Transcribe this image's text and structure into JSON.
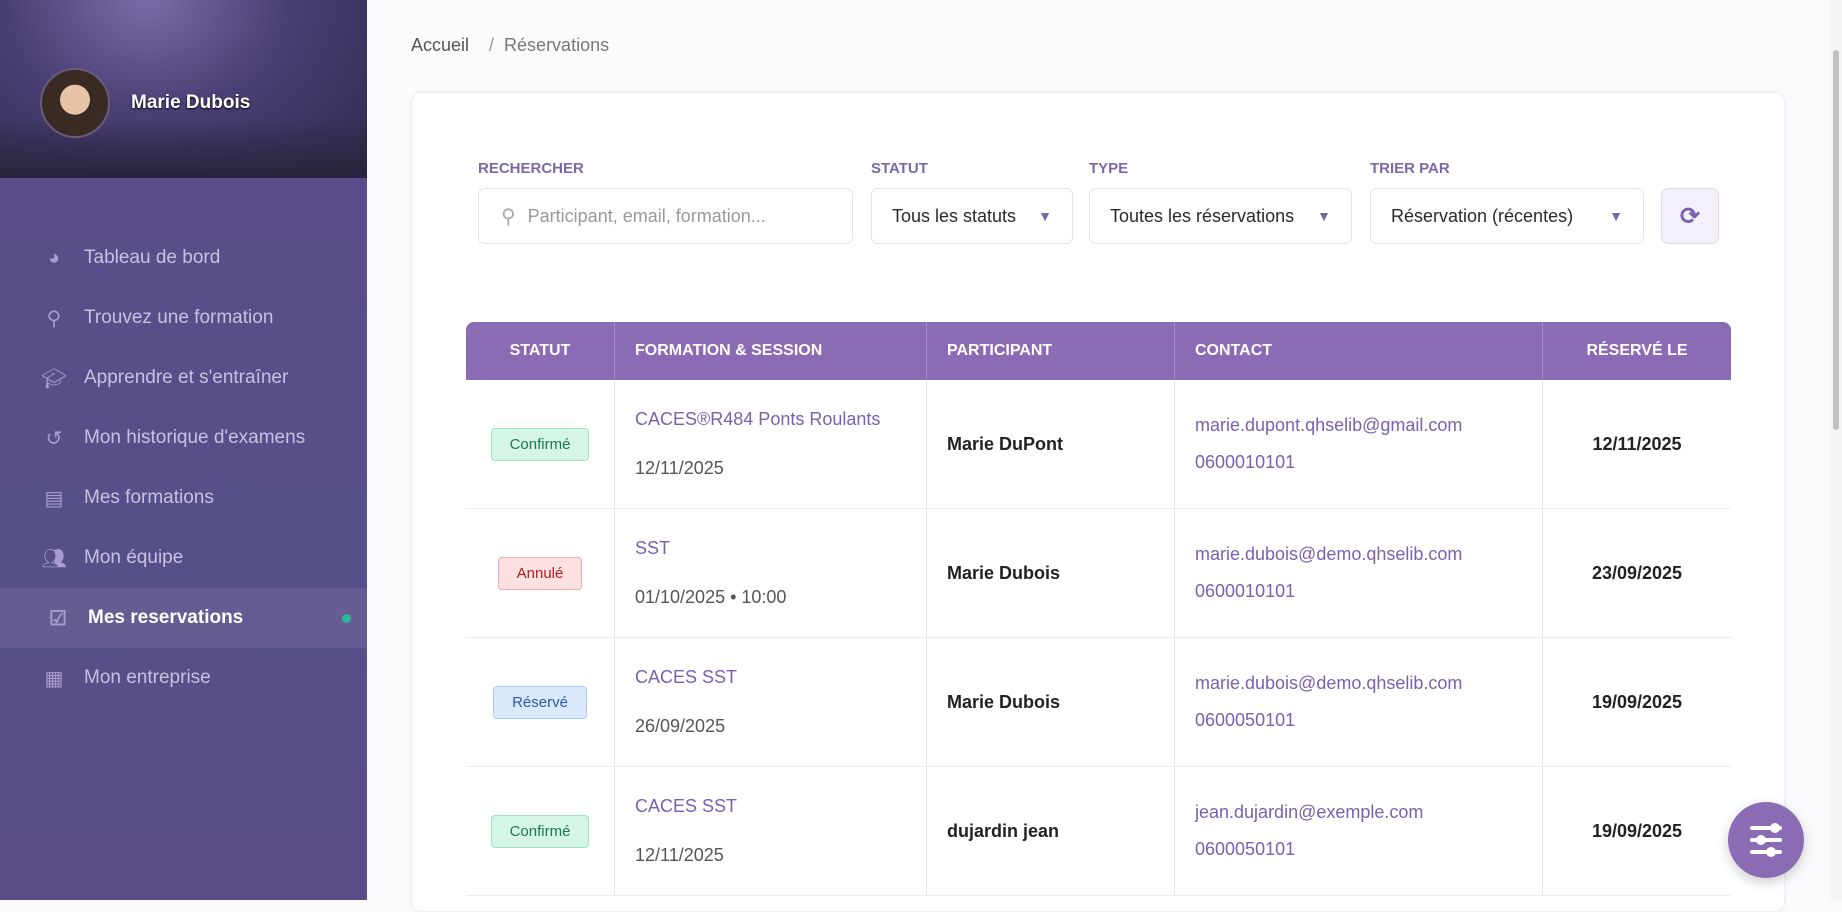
{
  "user": {
    "name": "Marie Dubois"
  },
  "nav": [
    {
      "label": "Tableau de bord",
      "icon": "pie-chart-icon"
    },
    {
      "label": "Trouvez une formation",
      "icon": "search-icon"
    },
    {
      "label": "Apprendre et s'entraîner",
      "icon": "graduation-cap-icon"
    },
    {
      "label": "Mon historique d'examens",
      "icon": "history-icon"
    },
    {
      "label": "Mes formations",
      "icon": "file-check-icon"
    },
    {
      "label": "Mon équipe",
      "icon": "team-icon"
    },
    {
      "label": "Mes reservations",
      "icon": "calendar-check-icon",
      "active": true
    },
    {
      "label": "Mon entreprise",
      "icon": "building-icon"
    }
  ],
  "breadcrumb": {
    "home": "Accueil",
    "sep": "/",
    "current": "Réservations"
  },
  "filters": {
    "search_label": "RECHERCHER",
    "search_placeholder": "Participant, email, formation...",
    "status_label": "STATUT",
    "status_value": "Tous les statuts",
    "type_label": "TYPE",
    "type_value": "Toutes les réservations",
    "sort_label": "TRIER PAR",
    "sort_value": "Réservation (récentes)"
  },
  "table": {
    "headers": [
      "STATUT",
      "FORMATION & SESSION",
      "PARTICIPANT",
      "CONTACT",
      "RÉSERVÉ LE"
    ],
    "rows": [
      {
        "status": "Confirmé",
        "status_kind": "ok",
        "formation": "CACES®R484 Ponts Roulants",
        "session": "12/11/2025",
        "participant": "Marie DuPont",
        "email": "marie.dupont.qhselib@gmail.com",
        "phone": "0600010101",
        "reserved": "12/11/2025"
      },
      {
        "status": "Annulé",
        "status_kind": "no",
        "formation": "SST",
        "session": "01/10/2025 • 10:00",
        "participant": "Marie Dubois",
        "email": "marie.dubois@demo.qhselib.com",
        "phone": "0600010101",
        "reserved": "23/09/2025"
      },
      {
        "status": "Réservé",
        "status_kind": "res",
        "formation": "CACES SST",
        "session": "26/09/2025",
        "participant": "Marie Dubois",
        "email": "marie.dubois@demo.qhselib.com",
        "phone": "0600050101",
        "reserved": "19/09/2025"
      },
      {
        "status": "Confirmé",
        "status_kind": "ok",
        "formation": "CACES SST",
        "session": "12/11/2025",
        "participant": "dujardin jean",
        "email": "jean.dujardin@exemple.com",
        "phone": "0600050101",
        "reserved": "19/09/2025"
      }
    ]
  },
  "colors": {
    "accent": "#8c6bb5",
    "active_dot": "#2bb59a"
  }
}
